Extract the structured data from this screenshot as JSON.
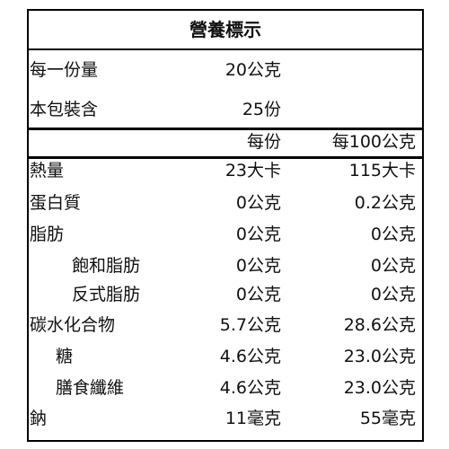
{
  "title": "營養標示",
  "serving": [
    [
      "每一份量",
      "20公克"
    ],
    [
      "本包裝含",
      "25份"
    ]
  ],
  "columns": [
    "每份",
    "每100公克"
  ],
  "rows": [
    [
      "熱量",
      "23大卡",
      "115大卡"
    ],
    [
      "蛋白質",
      "0公克",
      "0.2公克"
    ],
    [
      "脂肪",
      "0公克",
      "0公克"
    ],
    [
      "飽和脂肪",
      "0公克",
      "0公克"
    ],
    [
      "反式脂肪",
      "0公克",
      "0公克"
    ],
    [
      "碳水化合物",
      "5.7公克",
      "28.6公克"
    ],
    [
      "糖",
      "4.6公克",
      "23.0公克"
    ],
    [
      "膳食纖維",
      "4.6公克",
      "23.0公克"
    ],
    [
      "鈉",
      "11毫克",
      "55毫克"
    ]
  ]
}
